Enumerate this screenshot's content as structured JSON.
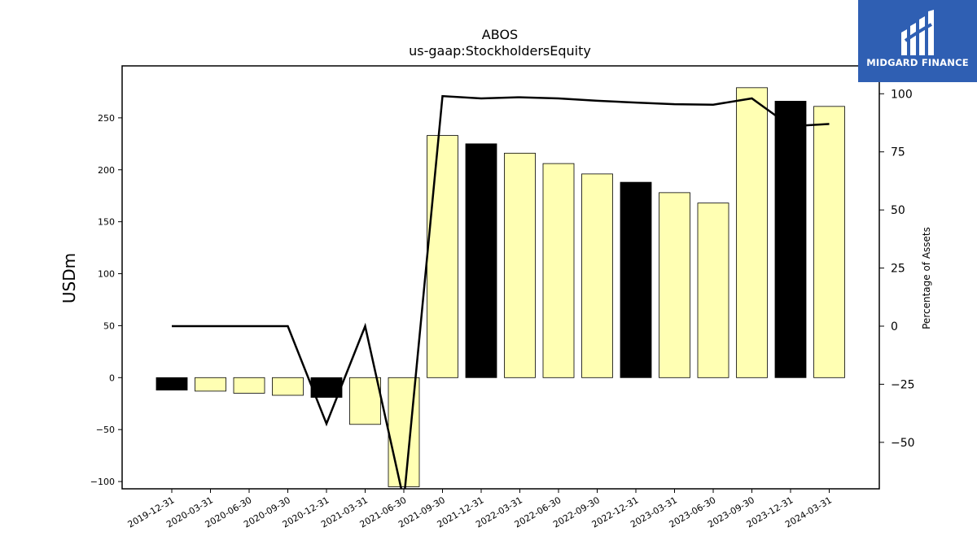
{
  "logo": {
    "text": "MIDGARD FINANCE"
  },
  "chart_data": {
    "type": "bar",
    "title": "ABOS",
    "subtitle": "us-gaap:StockholdersEquity",
    "ylabel": "USDm",
    "y2label": "Percentage of Assets",
    "ylim": [
      -107,
      300
    ],
    "y2lim": [
      -70,
      112
    ],
    "yticks": [
      -100,
      -50,
      0,
      50,
      100,
      150,
      200,
      250
    ],
    "y2ticks": [
      -50,
      -25,
      0,
      25,
      50,
      75,
      100
    ],
    "grid": false,
    "categories": [
      "2019-12-31",
      "2020-03-31",
      "2020-06-30",
      "2020-09-30",
      "2020-12-31",
      "2021-03-31",
      "2021-06-30",
      "2021-09-30",
      "2021-12-31",
      "2022-03-31",
      "2022-06-30",
      "2022-09-30",
      "2022-12-31",
      "2023-03-31",
      "2023-06-30",
      "2023-09-30",
      "2023-12-31",
      "2024-03-31"
    ],
    "series": [
      {
        "type": "bar",
        "values": [
          -12,
          -13,
          -15,
          -17,
          -19,
          -45,
          -105,
          233,
          225,
          216,
          206,
          196,
          188,
          178,
          168,
          279,
          266,
          261
        ],
        "highlight": [
          true,
          false,
          false,
          false,
          true,
          false,
          false,
          false,
          true,
          false,
          false,
          false,
          true,
          false,
          false,
          false,
          true,
          false
        ]
      },
      {
        "type": "line",
        "axis": "right",
        "values": [
          0,
          0,
          0,
          0,
          -42,
          0,
          -75,
          99,
          98,
          98.5,
          98,
          97,
          96.2,
          95.5,
          95.3,
          98,
          86,
          87
        ]
      }
    ],
    "colors": {
      "bar": "#ffffb3",
      "highlight": "#000000",
      "line": "#000000",
      "edge": "#000000",
      "logo_bg": "#2f5fb3"
    }
  }
}
